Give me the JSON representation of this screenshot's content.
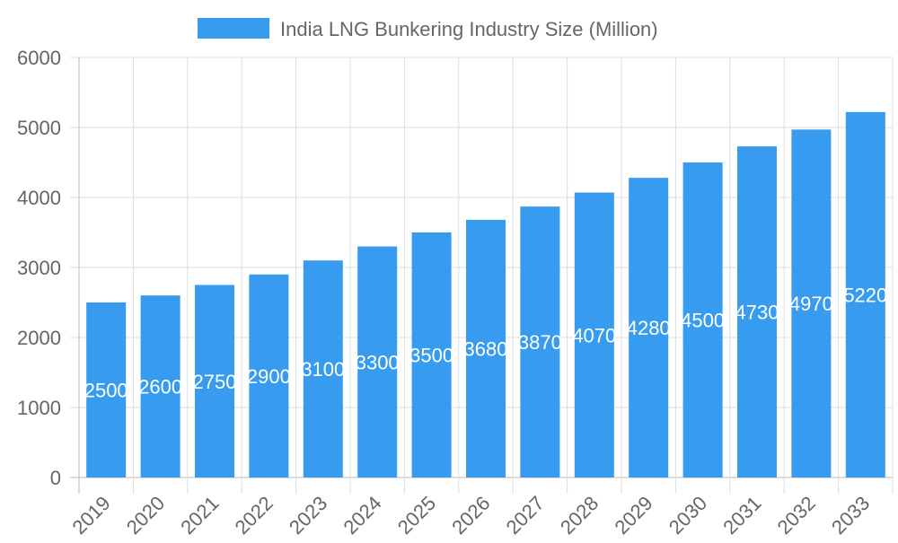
{
  "chart_data": {
    "type": "bar",
    "title": "",
    "xlabel": "",
    "ylabel": "",
    "categories": [
      "2019",
      "2020",
      "2021",
      "2022",
      "2023",
      "2024",
      "2025",
      "2026",
      "2027",
      "2028",
      "2029",
      "2030",
      "2031",
      "2032",
      "2033"
    ],
    "series": [
      {
        "name": "India LNG Bunkering Industry Size (Million)",
        "values": [
          2500,
          2600,
          2750,
          2900,
          3100,
          3300,
          3500,
          3680,
          3870,
          4070,
          4280,
          4500,
          4730,
          4970,
          5220
        ]
      }
    ],
    "ylim": [
      0,
      6000
    ],
    "yticks": [
      0,
      1000,
      2000,
      3000,
      4000,
      5000,
      6000
    ],
    "grid": true,
    "legend": "top-center",
    "data_labels": true,
    "colors": {
      "bar": "#379bf0",
      "grid": "#dddddd",
      "text": "#666666",
      "label": "#ffffff"
    }
  }
}
